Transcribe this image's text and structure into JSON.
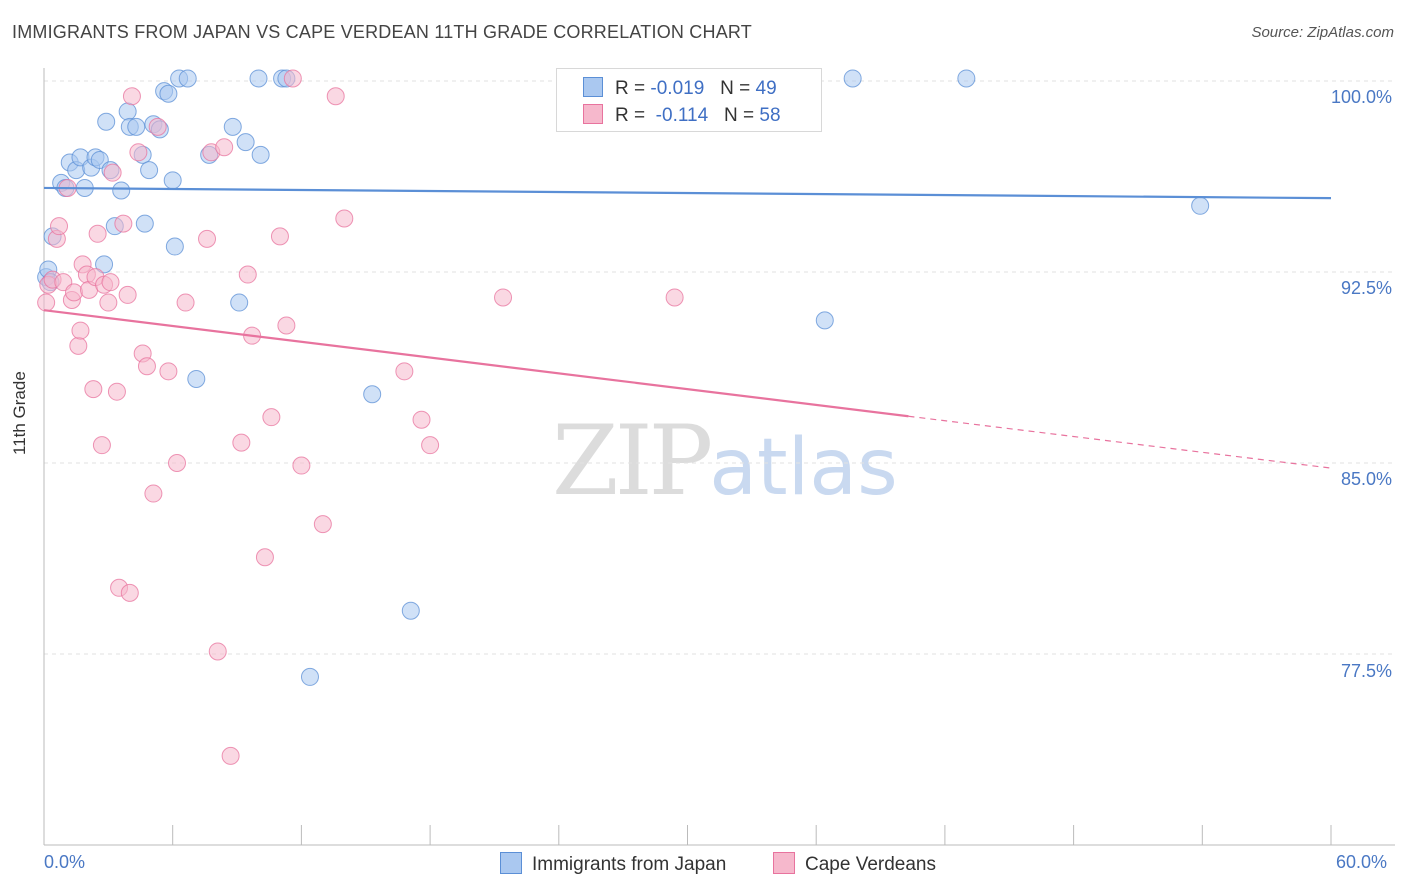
{
  "title": "IMMIGRANTS FROM JAPAN VS CAPE VERDEAN 11TH GRADE CORRELATION CHART",
  "source": "Source: ZipAtlas.com",
  "watermark": {
    "zip": "ZIP",
    "atlas": "atlas"
  },
  "colors": {
    "blue": "#5b8fd6",
    "blue_fill": "#aac8f0",
    "pink": "#e8739e",
    "pink_fill": "#f6b8cc",
    "tick_text": "#4a78c4",
    "grid": "#e2e2e2"
  },
  "legend": {
    "rows": [
      {
        "r_label": "R =",
        "r_value": "-0.019",
        "n_label": "N =",
        "n_value": "49"
      },
      {
        "r_label": "R =",
        "r_value": "-0.114",
        "n_label": "N =",
        "n_value": "58"
      }
    ]
  },
  "chart_data": {
    "type": "scatter",
    "xlabel": "",
    "ylabel": "11th Grade",
    "xlim": [
      0,
      60
    ],
    "ylim": [
      71.0,
      101.5
    ],
    "x_tick_labels": [
      "0.0%",
      "60.0%"
    ],
    "y_ticks": [
      100.0,
      92.5,
      85.0,
      77.5
    ],
    "y_tick_labels": [
      "100.0%",
      "92.5%",
      "85.0%",
      "77.5%"
    ],
    "grid": true,
    "legend_position": "top-center",
    "series": [
      {
        "name": "Immigrants from Japan",
        "color": "#5b8fd6",
        "trend": {
          "x": [
            0,
            60
          ],
          "y": [
            95.8,
            95.4
          ],
          "solid_until": 60
        },
        "points": [
          [
            0.1,
            92.3
          ],
          [
            0.2,
            92.6
          ],
          [
            0.3,
            92.1
          ],
          [
            0.4,
            93.9
          ],
          [
            0.8,
            96.0
          ],
          [
            1.0,
            95.8
          ],
          [
            1.2,
            96.8
          ],
          [
            1.5,
            96.5
          ],
          [
            1.7,
            97.0
          ],
          [
            1.9,
            95.8
          ],
          [
            2.2,
            96.6
          ],
          [
            2.4,
            97.0
          ],
          [
            2.6,
            96.9
          ],
          [
            2.8,
            92.8
          ],
          [
            2.9,
            98.4
          ],
          [
            3.1,
            96.5
          ],
          [
            3.3,
            94.3
          ],
          [
            3.6,
            95.7
          ],
          [
            3.9,
            98.8
          ],
          [
            4.0,
            98.2
          ],
          [
            4.3,
            98.2
          ],
          [
            4.6,
            97.1
          ],
          [
            4.7,
            94.4
          ],
          [
            4.9,
            96.5
          ],
          [
            5.1,
            98.3
          ],
          [
            5.4,
            98.1
          ],
          [
            5.6,
            99.6
          ],
          [
            5.8,
            99.5
          ],
          [
            6.0,
            96.1
          ],
          [
            6.1,
            93.5
          ],
          [
            6.3,
            100.1
          ],
          [
            6.7,
            100.1
          ],
          [
            7.1,
            88.3
          ],
          [
            7.7,
            97.1
          ],
          [
            8.8,
            98.2
          ],
          [
            9.1,
            91.3
          ],
          [
            9.4,
            97.6
          ],
          [
            10.0,
            100.1
          ],
          [
            10.1,
            97.1
          ],
          [
            11.1,
            100.1
          ],
          [
            11.3,
            100.1
          ],
          [
            12.4,
            76.6
          ],
          [
            15.3,
            87.7
          ],
          [
            17.1,
            79.2
          ],
          [
            28.7,
            100.1
          ],
          [
            36.4,
            90.6
          ],
          [
            37.7,
            100.1
          ],
          [
            43.0,
            100.1
          ],
          [
            53.9,
            95.1
          ]
        ]
      },
      {
        "name": "Cape Verdeans",
        "color": "#e8739e",
        "trend": {
          "x": [
            0,
            60
          ],
          "y": [
            91.0,
            84.8
          ],
          "solid_until": 40.3
        },
        "points": [
          [
            0.1,
            91.3
          ],
          [
            0.2,
            92.0
          ],
          [
            0.4,
            92.2
          ],
          [
            0.6,
            93.8
          ],
          [
            0.7,
            94.3
          ],
          [
            0.9,
            92.1
          ],
          [
            1.1,
            95.8
          ],
          [
            1.3,
            91.4
          ],
          [
            1.4,
            91.7
          ],
          [
            1.6,
            89.6
          ],
          [
            1.7,
            90.2
          ],
          [
            1.8,
            92.8
          ],
          [
            2.0,
            92.4
          ],
          [
            2.1,
            91.8
          ],
          [
            2.3,
            87.9
          ],
          [
            2.4,
            92.3
          ],
          [
            2.5,
            94.0
          ],
          [
            2.7,
            85.7
          ],
          [
            2.8,
            92.0
          ],
          [
            3.0,
            91.3
          ],
          [
            3.1,
            92.1
          ],
          [
            3.2,
            96.4
          ],
          [
            3.4,
            87.8
          ],
          [
            3.5,
            80.1
          ],
          [
            3.7,
            94.4
          ],
          [
            3.9,
            91.6
          ],
          [
            4.0,
            79.9
          ],
          [
            4.1,
            99.4
          ],
          [
            4.4,
            97.2
          ],
          [
            4.6,
            89.3
          ],
          [
            4.8,
            88.8
          ],
          [
            5.1,
            83.8
          ],
          [
            5.3,
            98.2
          ],
          [
            5.8,
            88.6
          ],
          [
            6.2,
            85.0
          ],
          [
            6.6,
            91.3
          ],
          [
            7.6,
            93.8
          ],
          [
            7.8,
            97.2
          ],
          [
            8.1,
            77.6
          ],
          [
            8.4,
            97.4
          ],
          [
            8.7,
            73.5
          ],
          [
            9.2,
            85.8
          ],
          [
            9.5,
            92.4
          ],
          [
            9.7,
            90.0
          ],
          [
            10.3,
            81.3
          ],
          [
            10.6,
            86.8
          ],
          [
            11.0,
            93.9
          ],
          [
            11.3,
            90.4
          ],
          [
            11.6,
            100.1
          ],
          [
            12.0,
            84.9
          ],
          [
            13.0,
            82.6
          ],
          [
            13.6,
            99.4
          ],
          [
            14.0,
            94.6
          ],
          [
            16.8,
            88.6
          ],
          [
            17.6,
            86.7
          ],
          [
            18.0,
            85.7
          ],
          [
            21.4,
            91.5
          ],
          [
            29.4,
            91.5
          ]
        ]
      }
    ]
  }
}
